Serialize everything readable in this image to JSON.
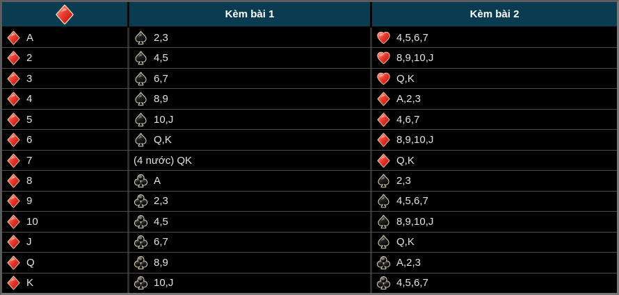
{
  "header": {
    "suit": "diamond-icon",
    "col1": "Kèm bài 1",
    "col2": "Kèm bài 2"
  },
  "rows": [
    {
      "rank": "A",
      "suit": "diamond-icon",
      "kem1": {
        "suit": "spade-icon",
        "cards": "2,3"
      },
      "kem2": {
        "suit": "heart-icon",
        "cards": "4,5,6,7"
      }
    },
    {
      "rank": "2",
      "suit": "diamond-icon",
      "kem1": {
        "suit": "spade-icon",
        "cards": "4,5"
      },
      "kem2": {
        "suit": "heart-icon",
        "cards": "8,9,10,J"
      }
    },
    {
      "rank": "3",
      "suit": "diamond-icon",
      "kem1": {
        "suit": "spade-icon",
        "cards": "6,7"
      },
      "kem2": {
        "suit": "heart-icon",
        "cards": "Q,K"
      }
    },
    {
      "rank": "4",
      "suit": "diamond-icon",
      "kem1": {
        "suit": "spade-icon",
        "cards": "8,9"
      },
      "kem2": {
        "suit": "diamond-icon",
        "cards": "A,2,3"
      }
    },
    {
      "rank": "5",
      "suit": "diamond-icon",
      "kem1": {
        "suit": "spade-icon",
        "cards": "10,J"
      },
      "kem2": {
        "suit": "diamond-icon",
        "cards": "4,6,7"
      }
    },
    {
      "rank": "6",
      "suit": "diamond-icon",
      "kem1": {
        "suit": "spade-icon",
        "cards": "Q,K"
      },
      "kem2": {
        "suit": "diamond-icon",
        "cards": "8,9,10,J"
      }
    },
    {
      "rank": "7",
      "suit": "diamond-icon",
      "kem1": {
        "suit": "",
        "cards": "(4 nước) QK"
      },
      "kem2": {
        "suit": "diamond-icon",
        "cards": "Q,K"
      }
    },
    {
      "rank": "8",
      "suit": "diamond-icon",
      "kem1": {
        "suit": "club-icon",
        "cards": "A"
      },
      "kem2": {
        "suit": "spade-icon",
        "cards": "2,3"
      }
    },
    {
      "rank": "9",
      "suit": "diamond-icon",
      "kem1": {
        "suit": "club-icon",
        "cards": "2,3"
      },
      "kem2": {
        "suit": "spade-icon",
        "cards": "4,5,6,7"
      }
    },
    {
      "rank": "10",
      "suit": "diamond-icon",
      "kem1": {
        "suit": "club-icon",
        "cards": "4,5"
      },
      "kem2": {
        "suit": "spade-icon",
        "cards": "8,9,10,J"
      }
    },
    {
      "rank": "J",
      "suit": "diamond-icon",
      "kem1": {
        "suit": "club-icon",
        "cards": "6,7"
      },
      "kem2": {
        "suit": "spade-icon",
        "cards": "Q,K"
      }
    },
    {
      "rank": "Q",
      "suit": "diamond-icon",
      "kem1": {
        "suit": "club-icon",
        "cards": "8,9"
      },
      "kem2": {
        "suit": "club-icon",
        "cards": "A,2,3"
      }
    },
    {
      "rank": "K",
      "suit": "diamond-icon",
      "kem1": {
        "suit": "club-icon",
        "cards": "10,J"
      },
      "kem2": {
        "suit": "club-icon",
        "cards": "4,5,6,7"
      }
    }
  ],
  "colors": {
    "header_bg": "#0b3b51",
    "header_text": "#ffffff",
    "row_bg": "#000000",
    "row_line": "#4c4c4c",
    "frame": "#5c5c5c",
    "text": "#e2e2e2",
    "suit_red": "#d41114",
    "suit_black": "#1c1c1c",
    "suit_outline": "#ece0b8"
  }
}
